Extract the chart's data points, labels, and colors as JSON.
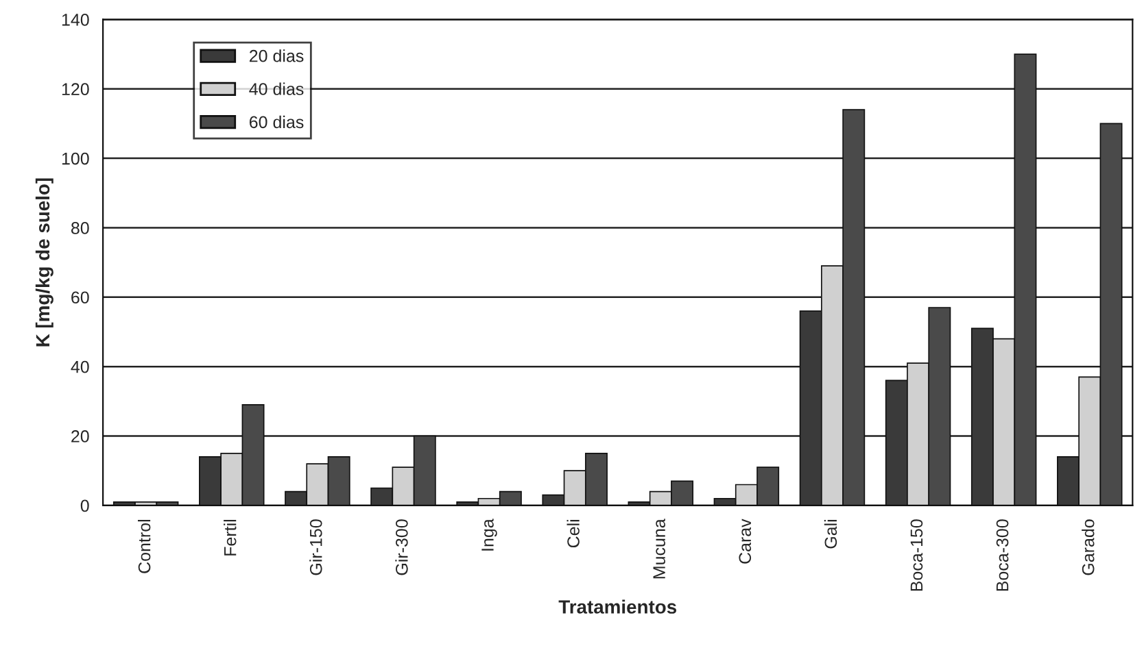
{
  "chart_data": {
    "type": "bar",
    "xlabel": "Tratamientos",
    "ylabel": "K [mg/kg de suelo]",
    "categories": [
      "Control",
      "Fertil",
      "Gir-150",
      "Gir-300",
      "Inga",
      "Celi",
      "Mucuna",
      "Carav",
      "Gali",
      "Boca-150",
      "Boca-300",
      "Garado"
    ],
    "series": [
      {
        "name": "20 dias",
        "color": "#3a3a3a",
        "values": [
          1,
          14,
          4,
          5,
          1,
          3,
          1,
          2,
          56,
          36,
          51,
          14
        ]
      },
      {
        "name": "40 dias",
        "color": "#d0d0d0",
        "values": [
          1,
          15,
          12,
          11,
          2,
          10,
          4,
          6,
          69,
          41,
          48,
          37
        ]
      },
      {
        "name": "60 dias",
        "color": "#4a4a4a",
        "values": [
          1,
          29,
          14,
          20,
          4,
          15,
          7,
          11,
          114,
          57,
          130,
          110
        ]
      }
    ],
    "ylim": [
      0,
      140
    ],
    "yticks": [
      0,
      20,
      40,
      60,
      80,
      100,
      120,
      140
    ],
    "grid": "y",
    "legend": "top left"
  }
}
